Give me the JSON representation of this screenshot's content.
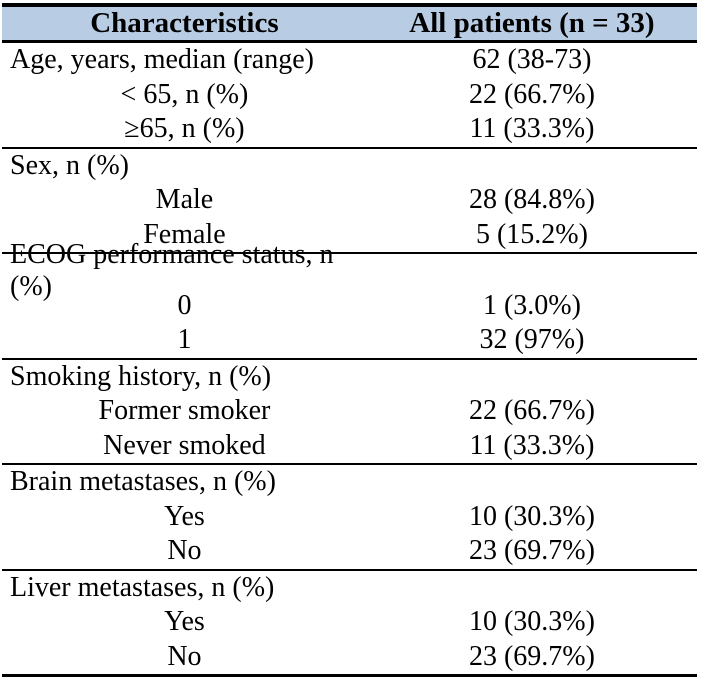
{
  "colors": {
    "header_bg": "#b8cce4",
    "border": "#000000",
    "text": "#000000",
    "page_bg": "#ffffff"
  },
  "table": {
    "header": {
      "col1": "Characteristics",
      "col2": "All patients (n = 33)"
    },
    "sections": [
      {
        "rows": [
          {
            "label": "Age, years, median (range)",
            "value": "62 (38-73)"
          },
          {
            "label": "< 65, n (%)",
            "value": "22 (66.7%)"
          },
          {
            "label": "≥65, n (%)",
            "value": "11 (33.3%)"
          }
        ]
      },
      {
        "rows": [
          {
            "label": "Sex, n (%)",
            "value": ""
          },
          {
            "label": "Male",
            "value": "28 (84.8%)"
          },
          {
            "label": "Female",
            "value": "5 (15.2%)"
          }
        ]
      },
      {
        "rows": [
          {
            "label": "ECOG performance status, n (%)",
            "value": ""
          },
          {
            "label": "0",
            "value": "1 (3.0%)"
          },
          {
            "label": "1",
            "value": "32 (97%)"
          }
        ]
      },
      {
        "rows": [
          {
            "label": "Smoking history, n (%)",
            "value": ""
          },
          {
            "label": "Former smoker",
            "value": "22 (66.7%)"
          },
          {
            "label": "Never smoked",
            "value": "11 (33.3%)"
          }
        ]
      },
      {
        "rows": [
          {
            "label": "Brain metastases, n (%)",
            "value": ""
          },
          {
            "label": "Yes",
            "value": "10 (30.3%)"
          },
          {
            "label": "No",
            "value": "23 (69.7%)"
          }
        ]
      },
      {
        "rows": [
          {
            "label": "Liver metastases, n (%)",
            "value": ""
          },
          {
            "label": "Yes",
            "value": "10 (30.3%)"
          },
          {
            "label": "No",
            "value": "23 (69.7%)"
          }
        ]
      }
    ]
  },
  "chart_data": {
    "type": "table",
    "columns": [
      "Characteristics",
      "All patients (n = 33)"
    ],
    "rows": [
      [
        "Age, years, median (range)",
        "62 (38-73)"
      ],
      [
        "< 65, n (%)",
        "22 (66.7%)"
      ],
      [
        "≥65, n (%)",
        "11 (33.3%)"
      ],
      [
        "Sex, n (%)",
        ""
      ],
      [
        "Male",
        "28 (84.8%)"
      ],
      [
        "Female",
        "5 (15.2%)"
      ],
      [
        "ECOG performance status, n (%)",
        ""
      ],
      [
        "0",
        "1 (3.0%)"
      ],
      [
        "1",
        "32 (97%)"
      ],
      [
        "Smoking history, n (%)",
        ""
      ],
      [
        "Former smoker",
        "22 (66.7%)"
      ],
      [
        "Never smoked",
        "11 (33.3%)"
      ],
      [
        "Brain metastases, n (%)",
        ""
      ],
      [
        "Yes",
        "10 (30.3%)"
      ],
      [
        "No",
        "23 (69.7%)"
      ],
      [
        "Liver metastases, n (%)",
        ""
      ],
      [
        "Yes",
        "10 (30.3%)"
      ],
      [
        "No",
        "23 (69.7%)"
      ]
    ]
  }
}
